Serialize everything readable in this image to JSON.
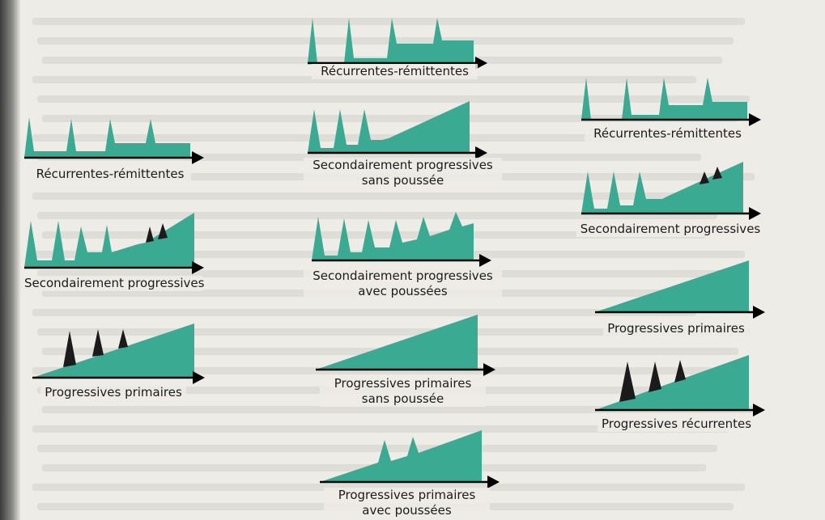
{
  "colors": {
    "fill": "#3aaa93",
    "axis": "#000000",
    "hatch": "#1b1b1b",
    "paper": "#eeece7"
  },
  "diagrams": [
    {
      "id": "left-rr",
      "caption_lines": [
        "Récurrentes-rémittentes"
      ]
    },
    {
      "id": "left-sp",
      "caption_lines": [
        "Secondairement progressives"
      ]
    },
    {
      "id": "left-pp",
      "caption_lines": [
        "Progressives primaires"
      ]
    },
    {
      "id": "mid-rr",
      "caption_lines": [
        "Récurrentes-rémittentes"
      ]
    },
    {
      "id": "mid-sp-sans",
      "caption_lines": [
        "Secondairement progressives",
        "sans poussée"
      ]
    },
    {
      "id": "mid-sp-avec",
      "caption_lines": [
        "Secondairement progressives",
        "avec poussées"
      ]
    },
    {
      "id": "mid-pp-sans",
      "caption_lines": [
        "Progressives primaires",
        "sans poussée"
      ]
    },
    {
      "id": "mid-pp-avec",
      "caption_lines": [
        "Progressives primaires",
        "avec poussées"
      ]
    },
    {
      "id": "right-rr",
      "caption_lines": [
        "Récurrentes-rémittentes"
      ]
    },
    {
      "id": "right-sp",
      "caption_lines": [
        "Secondairement progressives"
      ]
    },
    {
      "id": "right-pp",
      "caption_lines": [
        "Progressives primaires"
      ]
    },
    {
      "id": "right-pr",
      "caption_lines": [
        "Progressives récurrentes"
      ]
    }
  ]
}
